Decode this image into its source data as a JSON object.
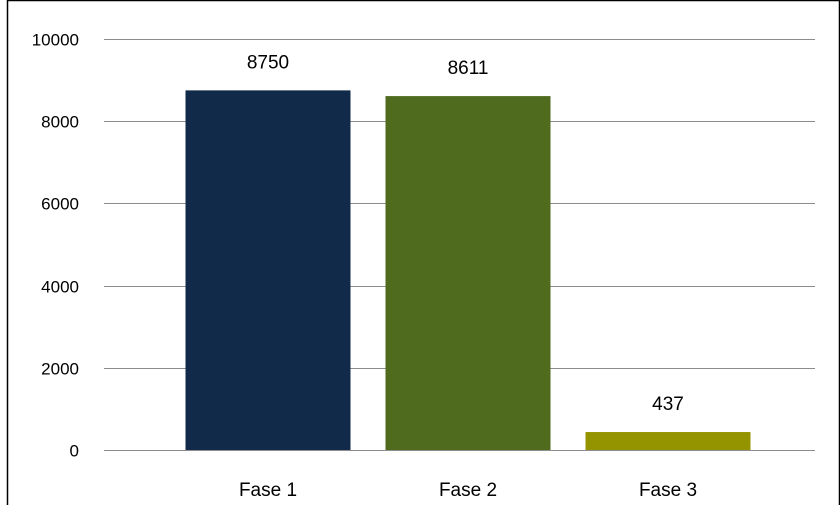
{
  "chart_data": {
    "type": "bar",
    "title": "",
    "xlabel": "",
    "ylabel": "",
    "categories": [
      "Fase 1",
      "Fase 2",
      "Fase 3"
    ],
    "values": [
      8750,
      8611,
      437
    ],
    "data_labels": [
      "8750",
      "8611",
      "437"
    ],
    "bar_colors": [
      "#112a4a",
      "#4f6b1e",
      "#949400"
    ],
    "ylim": [
      0,
      10000
    ],
    "yticks": [
      0,
      2000,
      4000,
      6000,
      8000,
      10000
    ],
    "ytick_labels": [
      "0",
      "2000",
      "4000",
      "6000",
      "8000",
      "10000"
    ],
    "grid": true,
    "legend": "none"
  }
}
